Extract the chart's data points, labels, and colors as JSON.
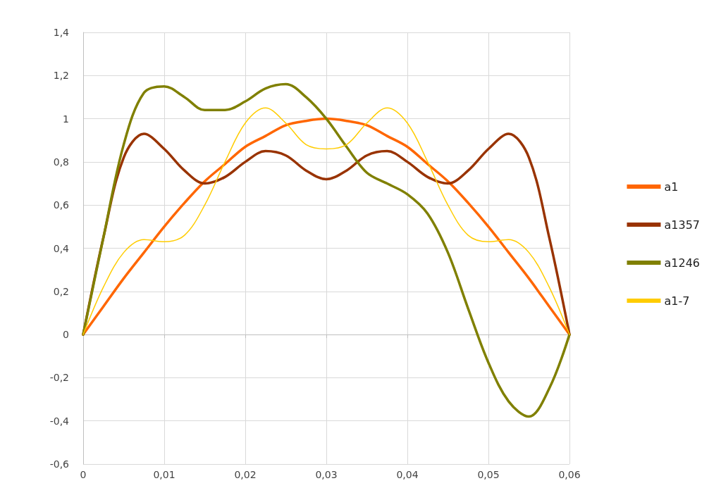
{
  "chart_data": {
    "type": "line",
    "x": [
      0,
      0.0025,
      0.005,
      0.0075,
      0.01,
      0.0125,
      0.015,
      0.0175,
      0.02,
      0.0225,
      0.025,
      0.0275,
      0.03,
      0.0325,
      0.035,
      0.0375,
      0.04,
      0.0425,
      0.045,
      0.0475,
      0.05,
      0.0525,
      0.055,
      0.0575,
      0.06
    ],
    "series": [
      {
        "name": "a1",
        "color": "#ff6600",
        "values": [
          0,
          0.13,
          0.26,
          0.38,
          0.5,
          0.61,
          0.71,
          0.79,
          0.87,
          0.92,
          0.97,
          0.99,
          1,
          0.99,
          0.97,
          0.92,
          0.87,
          0.79,
          0.71,
          0.61,
          0.5,
          0.38,
          0.26,
          0.13,
          0
        ]
      },
      {
        "name": "a1357",
        "color": "#993300",
        "values": [
          0,
          0.45,
          0.82,
          0.93,
          0.86,
          0.76,
          0.7,
          0.73,
          0.8,
          0.85,
          0.83,
          0.76,
          0.72,
          0.76,
          0.83,
          0.85,
          0.8,
          0.73,
          0.7,
          0.76,
          0.86,
          0.93,
          0.82,
          0.45,
          0
        ]
      },
      {
        "name": "a1246",
        "color": "#808000",
        "values": [
          0,
          0.45,
          0.88,
          1.12,
          1.15,
          1.1,
          1.04,
          1.04,
          1.08,
          1.14,
          1.16,
          1.1,
          1,
          0.87,
          0.75,
          0.7,
          0.65,
          0.56,
          0.38,
          0.12,
          -0.13,
          -0.31,
          -0.38,
          -0.25,
          0
        ]
      },
      {
        "name": "a1-7",
        "color": "#ffcc00",
        "values": [
          0,
          0.22,
          0.38,
          0.44,
          0.43,
          0.46,
          0.6,
          0.8,
          0.98,
          1.05,
          0.98,
          0.88,
          0.86,
          0.88,
          0.98,
          1.05,
          0.98,
          0.8,
          0.6,
          0.46,
          0.43,
          0.44,
          0.38,
          0.22,
          0
        ]
      }
    ],
    "xlim": [
      0,
      0.06
    ],
    "xticks": [
      0,
      {
        "value": 0.01,
        "label": "0,01"
      },
      {
        "value": 0.02,
        "label": "0,02"
      },
      {
        "value": 0.03,
        "label": "0,03"
      },
      {
        "value": 0.04,
        "label": "0,04"
      },
      {
        "value": 0.05,
        "label": "0,05"
      },
      {
        "value": 0.06,
        "label": "0,06"
      }
    ],
    "ylim": [
      -0.6,
      1.4
    ],
    "yticks": [
      {
        "value": -0.6,
        "label": "-0,6"
      },
      {
        "value": -0.4,
        "label": "-0,4"
      },
      {
        "value": -0.2,
        "label": "-0,2"
      },
      0,
      {
        "value": 0.2,
        "label": "0,2"
      },
      {
        "value": 0.4,
        "label": "0,4"
      },
      {
        "value": 0.6,
        "label": "0,6"
      },
      {
        "value": 0.8,
        "label": "0,8"
      },
      1,
      {
        "value": 1.2,
        "label": "1,2"
      },
      {
        "value": 1.4,
        "label": "1,4"
      }
    ],
    "grid": true,
    "legend": "right",
    "marker": "none",
    "line_style": "solid"
  }
}
